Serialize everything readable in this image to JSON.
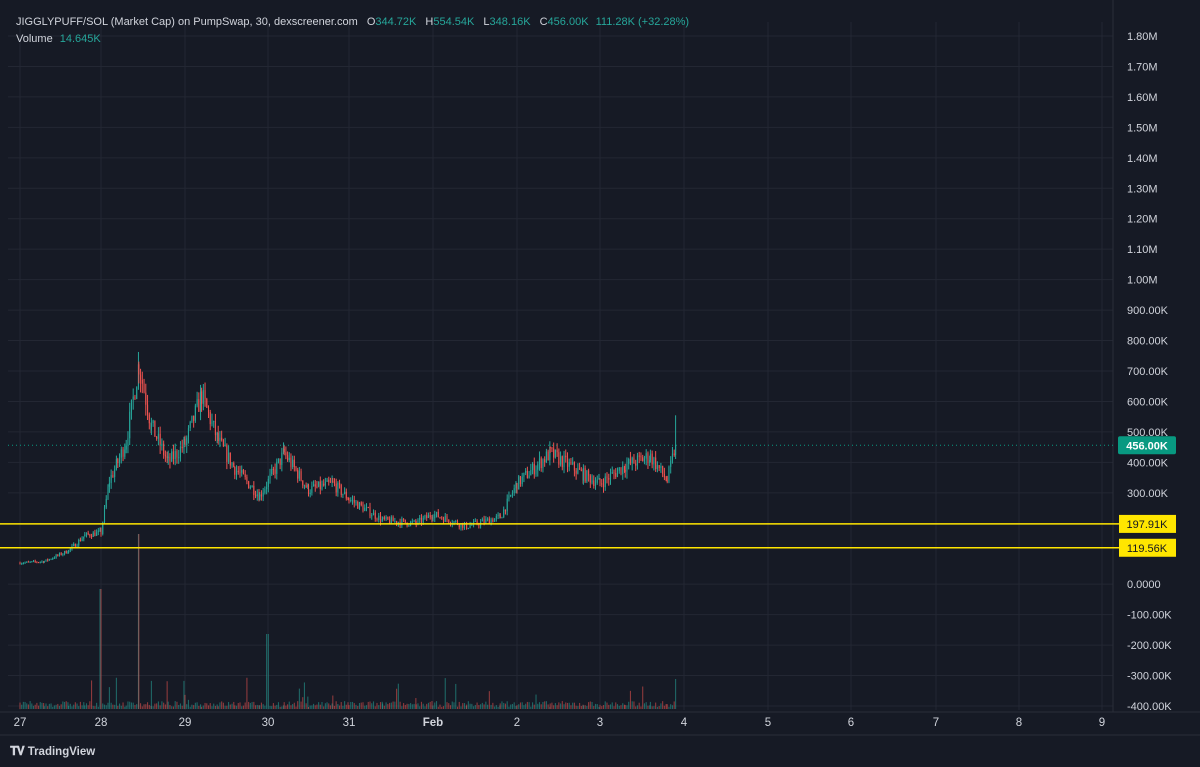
{
  "legend": {
    "title": "JIGGLYPUFF/SOL (Market Cap) on PumpSwap, 30, dexscreener.com",
    "open_label": "O",
    "open": "344.72K",
    "high_label": "H",
    "high": "554.54K",
    "low_label": "L",
    "low": "348.16K",
    "close_label": "C",
    "close": "456.00K",
    "change": "111.28K (+32.28%)",
    "volume_label": "Volume",
    "volume": "14.645K"
  },
  "brand": {
    "name": "TradingView"
  },
  "colors": {
    "up": "#26a69a",
    "down": "#ef5350",
    "background": "#161a25",
    "grid": "#232733",
    "text": "#d1d4dc",
    "marker_line": "#ffe600"
  },
  "chart_data": {
    "type": "candlestick",
    "title": "JIGGLYPUFF/SOL (Market Cap) on PumpSwap, 30, dexscreener.com",
    "x_ticks": [
      "27",
      "28",
      "29",
      "30",
      "31",
      "Feb",
      "2",
      "3",
      "4",
      "5",
      "6",
      "7",
      "8",
      "9"
    ],
    "y_ticks": [
      "1.80M",
      "1.70M",
      "1.60M",
      "1.50M",
      "1.40M",
      "1.30M",
      "1.20M",
      "1.10M",
      "1.00M",
      "900.00K",
      "800.00K",
      "700.00K",
      "600.00K",
      "500.00K",
      "400.00K",
      "300.00K",
      "0.0000",
      "-100.00K",
      "-200.00K",
      "-300.00K",
      "-400.00K"
    ],
    "ylim": [
      -400000,
      1800000
    ],
    "grid": true,
    "last_price": {
      "value": 456000,
      "label": "456.00K",
      "color": "#089981"
    },
    "horizontal_lines": [
      {
        "value": 197910,
        "label": "197.91K",
        "color": "#ffe600"
      },
      {
        "value": 119560,
        "label": "119.56K",
        "color": "#ffe600"
      }
    ],
    "price_path": {
      "description_points": [
        [
          "27.0",
          70000
        ],
        [
          "27.3",
          75000
        ],
        [
          "27.6",
          110000
        ],
        [
          "27.8",
          160000
        ],
        [
          "28.0",
          170000
        ],
        [
          "28.1",
          340000
        ],
        [
          "28.2",
          400000
        ],
        [
          "28.3",
          470000
        ],
        [
          "28.45",
          720000
        ],
        [
          "28.6",
          520000
        ],
        [
          "28.8",
          400000
        ],
        [
          "29.0",
          460000
        ],
        [
          "29.2",
          620000
        ],
        [
          "29.4",
          470000
        ],
        [
          "29.6",
          380000
        ],
        [
          "29.9",
          290000
        ],
        [
          "30.2",
          430000
        ],
        [
          "30.5",
          310000
        ],
        [
          "30.8",
          330000
        ],
        [
          "31.0",
          280000
        ],
        [
          "31.4",
          210000
        ],
        [
          "31.8",
          200000
        ],
        [
          "Feb.0",
          230000
        ],
        [
          "Feb.4",
          190000
        ],
        [
          "Feb.8",
          220000
        ],
        [
          "2.0",
          330000
        ],
        [
          "2.4",
          430000
        ],
        [
          "2.8",
          360000
        ],
        [
          "3.0",
          330000
        ],
        [
          "3.3",
          390000
        ],
        [
          "3.6",
          420000
        ],
        [
          "3.8",
          340000
        ],
        [
          "3.9",
          456000
        ]
      ],
      "spike_high": 554540
    },
    "volume": {
      "max_label": "14.645K",
      "color_up": "#26a69a",
      "color_down": "#ef5350"
    }
  }
}
